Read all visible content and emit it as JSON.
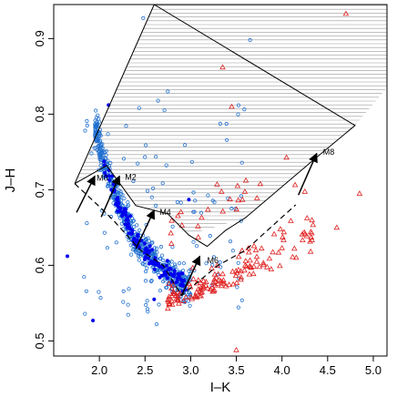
{
  "chart_data": {
    "type": "scatter",
    "xlabel": "I–K",
    "ylabel": "J–H",
    "xlim": [
      1.5,
      5.15
    ],
    "ylim": [
      0.48,
      0.945
    ],
    "x_ticks": [
      {
        "value": 2.0,
        "label": "2.0"
      },
      {
        "value": 2.5,
        "label": "2.5"
      },
      {
        "value": 3.0,
        "label": "3.0"
      },
      {
        "value": 3.5,
        "label": "3.5"
      },
      {
        "value": 4.0,
        "label": "4.0"
      },
      {
        "value": 4.5,
        "label": "4.5"
      },
      {
        "value": 5.0,
        "label": "5.0"
      }
    ],
    "y_ticks": [
      {
        "value": 0.5,
        "label": "0.5"
      },
      {
        "value": 0.6,
        "label": "0.6"
      },
      {
        "value": 0.7,
        "label": "0.7"
      },
      {
        "value": 0.8,
        "label": "0.8"
      },
      {
        "value": 0.9,
        "label": "0.9"
      }
    ],
    "shaded_region": {
      "fill": "hatched",
      "upper_boundary": [
        [
          1.73,
          0.708
        ],
        [
          2.6,
          0.945
        ],
        [
          5.15,
          0.945
        ]
      ],
      "lower_boundary": [
        [
          1.73,
          0.708
        ],
        [
          2.08,
          0.732
        ],
        [
          2.4,
          0.679
        ],
        [
          2.75,
          0.668
        ],
        [
          2.98,
          0.64
        ],
        [
          3.6,
          0.663
        ],
        [
          4.35,
          0.74
        ],
        [
          4.8,
          0.785
        ],
        [
          5.15,
          0.835
        ]
      ]
    },
    "envelope": {
      "line_style": "solid",
      "points": [
        [
          1.73,
          0.708
        ],
        [
          2.6,
          0.945
        ],
        [
          4.8,
          0.785
        ],
        [
          4.35,
          0.74
        ],
        [
          3.6,
          0.663
        ],
        [
          3.38,
          0.646
        ],
        [
          3.18,
          0.625
        ],
        [
          2.98,
          0.64
        ],
        [
          2.75,
          0.668
        ],
        [
          2.4,
          0.679
        ],
        [
          2.08,
          0.732
        ],
        [
          1.73,
          0.708
        ]
      ]
    },
    "dashed_sequence": [
      [
        1.73,
        0.708
      ],
      [
        1.98,
        0.68
      ],
      [
        2.15,
        0.66
      ],
      [
        2.3,
        0.64
      ],
      [
        2.45,
        0.62
      ],
      [
        2.7,
        0.6
      ],
      [
        2.9,
        0.56
      ],
      [
        3.05,
        0.575
      ],
      [
        3.3,
        0.6
      ],
      [
        3.6,
        0.62
      ],
      [
        4.15,
        0.68
      ]
    ],
    "arrows": [
      {
        "label": "M0",
        "from": [
          1.75,
          0.67
        ],
        "to": [
          1.95,
          0.718
        ]
      },
      {
        "label": "M2",
        "from": [
          2.02,
          0.664
        ],
        "to": [
          2.22,
          0.718
        ]
      },
      {
        "label": "M4",
        "from": [
          2.4,
          0.622
        ],
        "to": [
          2.6,
          0.673
        ]
      },
      {
        "label": "M6",
        "from": [
          2.9,
          0.56
        ],
        "to": [
          3.1,
          0.612
        ]
      },
      {
        "label": "M8",
        "from": [
          4.18,
          0.693
        ],
        "to": [
          4.38,
          0.748
        ]
      }
    ],
    "series": [
      {
        "marker": "open-circle",
        "color": "#1f6fd1"
      },
      {
        "marker": "filled-circle",
        "color": "#0000ee"
      },
      {
        "marker": "open-triangle",
        "color": "#e02020"
      }
    ],
    "annotations": [
      {
        "text": "M0",
        "x": 1.97,
        "y": 0.712
      },
      {
        "text": "M2",
        "x": 2.28,
        "y": 0.713
      },
      {
        "text": "M4",
        "x": 2.66,
        "y": 0.667
      },
      {
        "text": "M6",
        "x": 3.18,
        "y": 0.603
      },
      {
        "text": "M8",
        "x": 4.45,
        "y": 0.746
      }
    ]
  }
}
